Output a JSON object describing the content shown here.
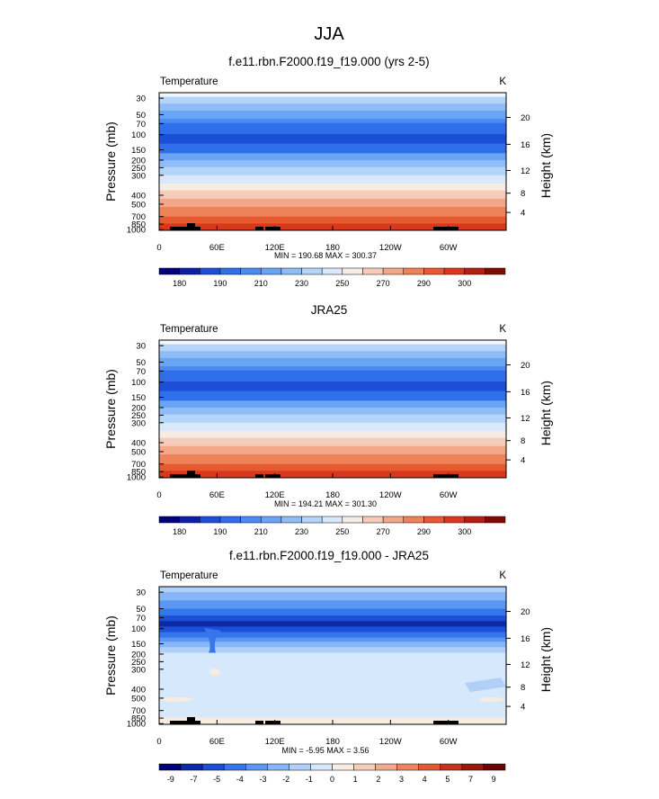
{
  "figure_title": "JJA",
  "colors": {
    "panel_scale": [
      "#00007a",
      "#0b1fa8",
      "#1d4fd6",
      "#2f6fe9",
      "#4a8cf2",
      "#6aa4f5",
      "#8ebdf8",
      "#b4d4fa",
      "#d9e8fb",
      "#f7ece4",
      "#f6ccb8",
      "#f2a888",
      "#ee8258",
      "#e65a30",
      "#d8381b",
      "#b31f12",
      "#7f0b06"
    ],
    "diff_scale": [
      "#00007a",
      "#0c2aa6",
      "#1d4fd6",
      "#3577ea",
      "#5a98f2",
      "#86b6f7",
      "#b0d0fa",
      "#d6e8fb",
      "#f8ece1",
      "#f6cdb5",
      "#f2aa8a",
      "#ec845d",
      "#e25a33",
      "#c8331c",
      "#9c170c",
      "#6a0505"
    ]
  },
  "chart_data": [
    {
      "type": "heatmap",
      "title": "f.e11.rbn.F2000.f19_f19.000 (yrs 2-5)",
      "left_string": "Temperature",
      "right_string": "K",
      "ylabel": "Pressure (mb)",
      "ylabel_right": "Height (km)",
      "x_ticks": [
        "0",
        "60E",
        "120E",
        "180",
        "120W",
        "60W"
      ],
      "y_ticks": [
        "30",
        "50",
        "70",
        "100",
        "150",
        "200",
        "250",
        "300",
        "400",
        "500",
        "700",
        "850",
        "1000"
      ],
      "y_ticks_right": [
        "20",
        "16",
        "12",
        "8",
        "4"
      ],
      "stats": "MIN = 190.68  MAX = 300.37",
      "colorbar_labels": [
        "180",
        "190",
        "210",
        "230",
        "250",
        "270",
        "290",
        "300"
      ]
    },
    {
      "type": "heatmap",
      "title": "JRA25",
      "left_string": "Temperature",
      "right_string": "K",
      "ylabel": "Pressure (mb)",
      "ylabel_right": "Height (km)",
      "x_ticks": [
        "0",
        "60E",
        "120E",
        "180",
        "120W",
        "60W"
      ],
      "y_ticks": [
        "30",
        "50",
        "70",
        "100",
        "150",
        "200",
        "250",
        "300",
        "400",
        "500",
        "700",
        "850",
        "1000"
      ],
      "y_ticks_right": [
        "20",
        "16",
        "12",
        "8",
        "4"
      ],
      "stats": "MIN = 194.21  MAX = 301.30",
      "colorbar_labels": [
        "180",
        "190",
        "210",
        "230",
        "250",
        "270",
        "290",
        "300"
      ]
    },
    {
      "type": "heatmap",
      "title": "f.e11.rbn.F2000.f19_f19.000 - JRA25",
      "left_string": "Temperature",
      "right_string": "K",
      "ylabel": "Pressure (mb)",
      "ylabel_right": "Height (km)",
      "x_ticks": [
        "0",
        "60E",
        "120E",
        "180",
        "120W",
        "60W"
      ],
      "y_ticks": [
        "30",
        "50",
        "70",
        "100",
        "150",
        "200",
        "250",
        "300",
        "400",
        "500",
        "700",
        "850",
        "1000"
      ],
      "y_ticks_right": [
        "20",
        "16",
        "12",
        "8",
        "4"
      ],
      "stats": "MIN = -5.95  MAX =  3.56",
      "colorbar_labels": [
        "-9",
        "-7",
        "-5",
        "-4",
        "-3",
        "-2",
        "-1",
        "0",
        "1",
        "2",
        "3",
        "4",
        "5",
        "7",
        "9"
      ]
    }
  ]
}
